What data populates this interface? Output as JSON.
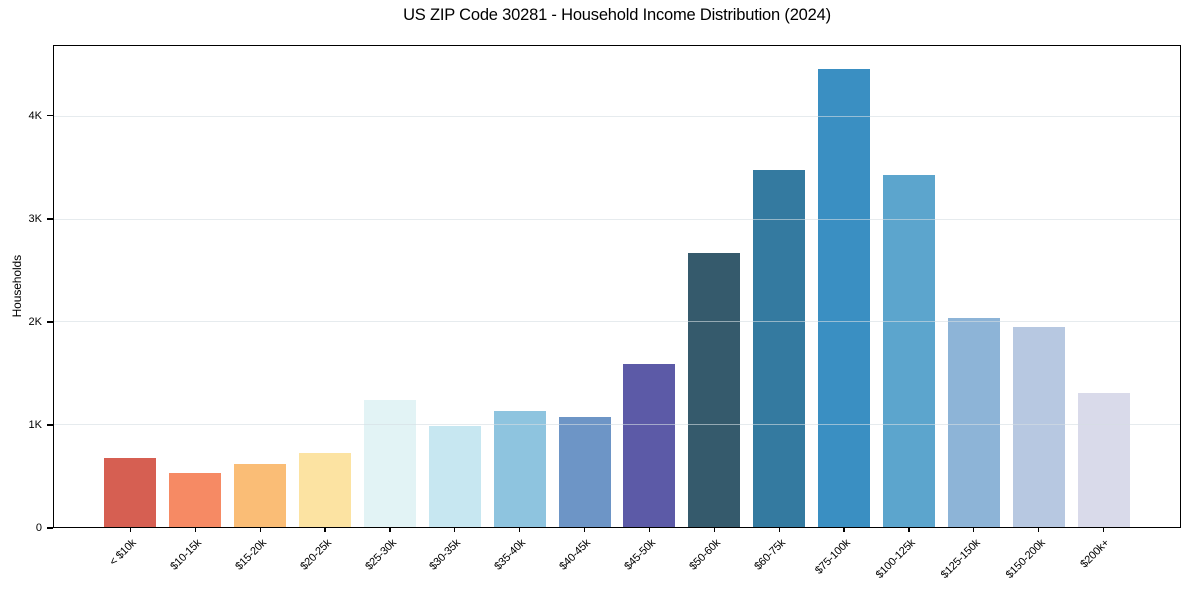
{
  "chart_data": {
    "type": "bar",
    "title": "US ZIP Code 30281 - Household Income Distribution (2024)",
    "xlabel": "",
    "ylabel": "Households",
    "categories": [
      "< $10k",
      "$10-15k",
      "$15-20k",
      "$20-25k",
      "$25-30k",
      "$30-35k",
      "$35-40k",
      "$40-45k",
      "$45-50k",
      "$50-60k",
      "$60-75k",
      "$75-100k",
      "$100-125k",
      "$125-150k",
      "$150-200k",
      "$200k+"
    ],
    "values": [
      670,
      525,
      610,
      720,
      1240,
      980,
      1135,
      1070,
      1585,
      2670,
      3480,
      4465,
      3435,
      2040,
      1950,
      1310
    ],
    "bar_colors": [
      "#d65f52",
      "#f68a64",
      "#fabd76",
      "#fce3a2",
      "#e2f3f5",
      "#c7e7f1",
      "#8ec4df",
      "#6d95c6",
      "#5c5aa7",
      "#355a6c",
      "#347aa0",
      "#3a8fc2",
      "#5ca5cd",
      "#8db4d7",
      "#b7c8e1",
      "#d9daea"
    ],
    "ylim": [
      0,
      4688
    ],
    "ytick_values": [
      0,
      1000,
      2000,
      3000,
      4000
    ],
    "ytick_labels": [
      "0",
      "1K",
      "2K",
      "3K",
      "4K"
    ],
    "grid": "horizontal-light",
    "gridlines_above_bars": true,
    "legend": "none",
    "bar_width_fraction": 0.8
  },
  "style": {
    "background": "#ffffff",
    "spine_color": "#000000",
    "grid_color_rgba": "rgba(213,222,227,0.6)",
    "text_color": "#000000"
  }
}
